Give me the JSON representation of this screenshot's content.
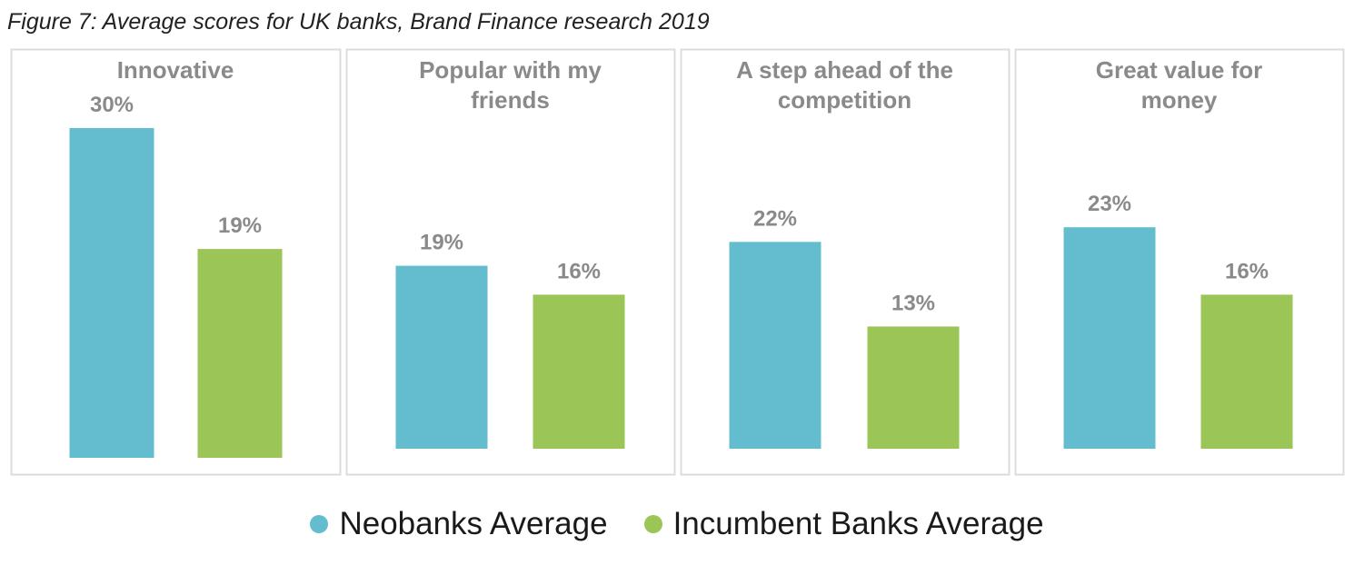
{
  "figure": {
    "title": "Figure 7: Average scores for UK banks, Brand Finance research 2019"
  },
  "colors": {
    "neobanks": "#63BDCF",
    "incumbent": "#9BC556",
    "label_text": "#8a8a8a",
    "panel_border": "#dcdcdc"
  },
  "chart_data": {
    "type": "bar",
    "value_unit": "%",
    "series": [
      {
        "name": "Neobanks Average",
        "color": "#63BDCF"
      },
      {
        "name": "Incumbent Banks Average",
        "color": "#9BC556"
      }
    ],
    "panels": [
      {
        "title_lines": [
          "Innovative"
        ],
        "values": [
          30,
          19
        ],
        "labels": [
          "30%",
          "19%"
        ]
      },
      {
        "title_lines": [
          "Popular with my",
          "friends"
        ],
        "values": [
          19,
          16
        ],
        "labels": [
          "19%",
          "16%"
        ]
      },
      {
        "title_lines": [
          "A step ahead of the",
          "competition"
        ],
        "values": [
          22,
          13
        ],
        "labels": [
          "22%",
          "13%"
        ]
      },
      {
        "title_lines": [
          "Great value for",
          "money"
        ],
        "values": [
          23,
          16
        ],
        "labels": [
          "23%",
          "16%"
        ]
      }
    ],
    "legend_position": "bottom",
    "grid": false
  }
}
